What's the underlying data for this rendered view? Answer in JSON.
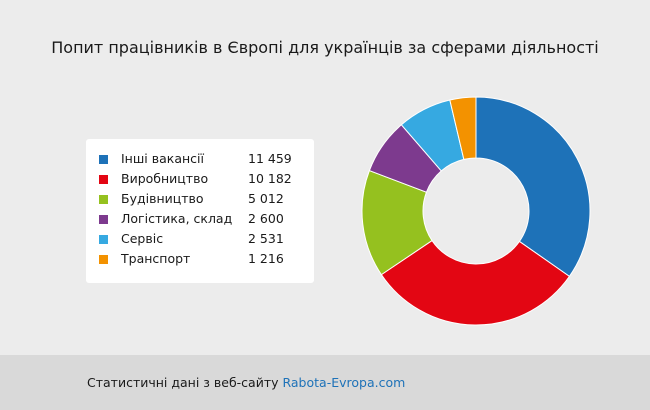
{
  "chart_data": {
    "type": "pie",
    "title": "Попит працівників в Європі для українців за сферами діяльності",
    "legend_position": "left",
    "categories": [
      "Інші вакансії",
      "Виробництво",
      "Будівництво",
      "Логістика, склад",
      "Сервіс",
      "Транспорт"
    ],
    "values": [
      11459,
      10182,
      5012,
      2600,
      2531,
      1216
    ],
    "value_labels": [
      "11 459",
      "10 182",
      "5 012",
      "2 600",
      "2 531",
      "1 216"
    ],
    "colors": [
      "#1e72b8",
      "#e30613",
      "#95c11f",
      "#7d3a8e",
      "#36a9e1",
      "#f39200"
    ],
    "donut": true
  },
  "footer": {
    "text": "Статистичні дані з веб-сайту ",
    "link": "Rabota-Evropa.com"
  }
}
